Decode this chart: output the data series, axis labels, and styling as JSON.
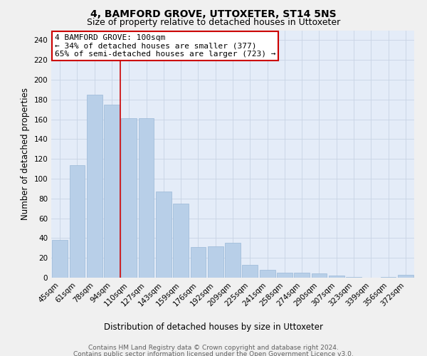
{
  "title": "4, BAMFORD GROVE, UTTOXETER, ST14 5NS",
  "subtitle": "Size of property relative to detached houses in Uttoxeter",
  "xlabel": "Distribution of detached houses by size in Uttoxeter",
  "ylabel": "Number of detached properties",
  "categories": [
    "45sqm",
    "61sqm",
    "78sqm",
    "94sqm",
    "110sqm",
    "127sqm",
    "143sqm",
    "159sqm",
    "176sqm",
    "192sqm",
    "209sqm",
    "225sqm",
    "241sqm",
    "258sqm",
    "274sqm",
    "290sqm",
    "307sqm",
    "323sqm",
    "339sqm",
    "356sqm",
    "372sqm"
  ],
  "values": [
    38,
    114,
    185,
    175,
    161,
    161,
    87,
    75,
    31,
    32,
    35,
    13,
    8,
    5,
    5,
    4,
    2,
    1,
    0,
    1,
    3
  ],
  "bar_color": "#b8cfe8",
  "bar_edge_color": "#9ab8d8",
  "red_line_x": 3.5,
  "annotation_line1": "4 BAMFORD GROVE: 100sqm",
  "annotation_line2": "← 34% of detached houses are smaller (377)",
  "annotation_line3": "65% of semi-detached houses are larger (723) →",
  "annotation_box_color": "#ffffff",
  "annotation_box_edge_color": "#cc0000",
  "ylim": [
    0,
    250
  ],
  "yticks": [
    0,
    20,
    40,
    60,
    80,
    100,
    120,
    140,
    160,
    180,
    200,
    220,
    240
  ],
  "grid_color": "#c8d4e4",
  "background_color": "#e4ecf8",
  "fig_background": "#f0f0f0",
  "footer_line1": "Contains HM Land Registry data © Crown copyright and database right 2024.",
  "footer_line2": "Contains public sector information licensed under the Open Government Licence v3.0.",
  "title_fontsize": 10,
  "subtitle_fontsize": 9,
  "axis_label_fontsize": 8.5,
  "tick_fontsize": 7.5,
  "annotation_fontsize": 8,
  "footer_fontsize": 6.5
}
